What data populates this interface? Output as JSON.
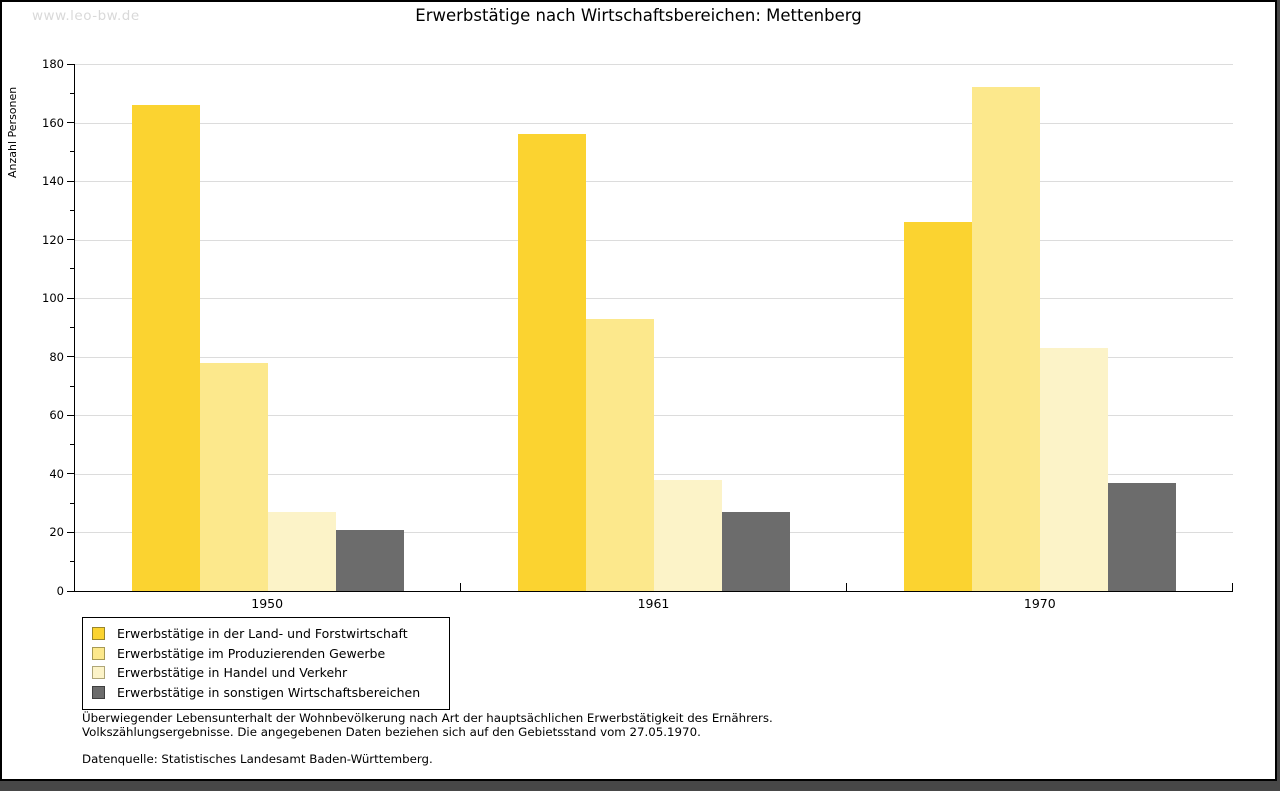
{
  "watermark": "www.leo-bw.de",
  "header": {
    "title": "Erwerbstätige nach Wirtschaftsbereichen: Mettenberg"
  },
  "chart_data": {
    "type": "bar",
    "title": "Erwerbstätige nach Wirtschaftsbereichen: Mettenberg",
    "xlabel": "",
    "ylabel": "Anzahl Personen",
    "ylim": [
      0,
      180
    ],
    "ytick_step": 20,
    "ytick_minor_step": 10,
    "grid": true,
    "legend_position": "bottom-left",
    "categories": [
      "1950",
      "1961",
      "1970"
    ],
    "series": [
      {
        "name": "Erwerbstätige in der Land- und Forstwirtschaft",
        "color": "#FBD330",
        "swatch_border": "#99862B",
        "values": [
          166,
          156,
          126
        ]
      },
      {
        "name": "Erwerbstätige im Produzierenden Gewerbe",
        "color": "#FCE88C",
        "swatch_border": "#A79A54",
        "values": [
          78,
          93,
          172
        ]
      },
      {
        "name": "Erwerbstätige in Handel und Verkehr",
        "color": "#FCF3C8",
        "swatch_border": "#AFA678",
        "values": [
          27,
          38,
          83
        ]
      },
      {
        "name": "Erwerbstätige in sonstigen Wirtschaftsbereichen",
        "color": "#6C6C6C",
        "swatch_border": "#3E3E3E",
        "values": [
          21,
          27,
          37
        ]
      }
    ]
  },
  "footnotes": {
    "line1": "Überwiegender Lebensunterhalt der Wohnbevölkerung nach Art der hauptsächlichen Erwerbstätigkeit des Ernährers.",
    "line2": "Volkszählungsergebnisse. Die angegebenen Daten beziehen sich auf den Gebietsstand vom 27.05.1970.",
    "source": "Datenquelle: Statistisches Landesamt Baden-Württemberg."
  },
  "colors": {
    "gridline": "#dcdcdc",
    "axis": "#000000",
    "watermark": "#d9d9d9",
    "surround": "#474747"
  }
}
